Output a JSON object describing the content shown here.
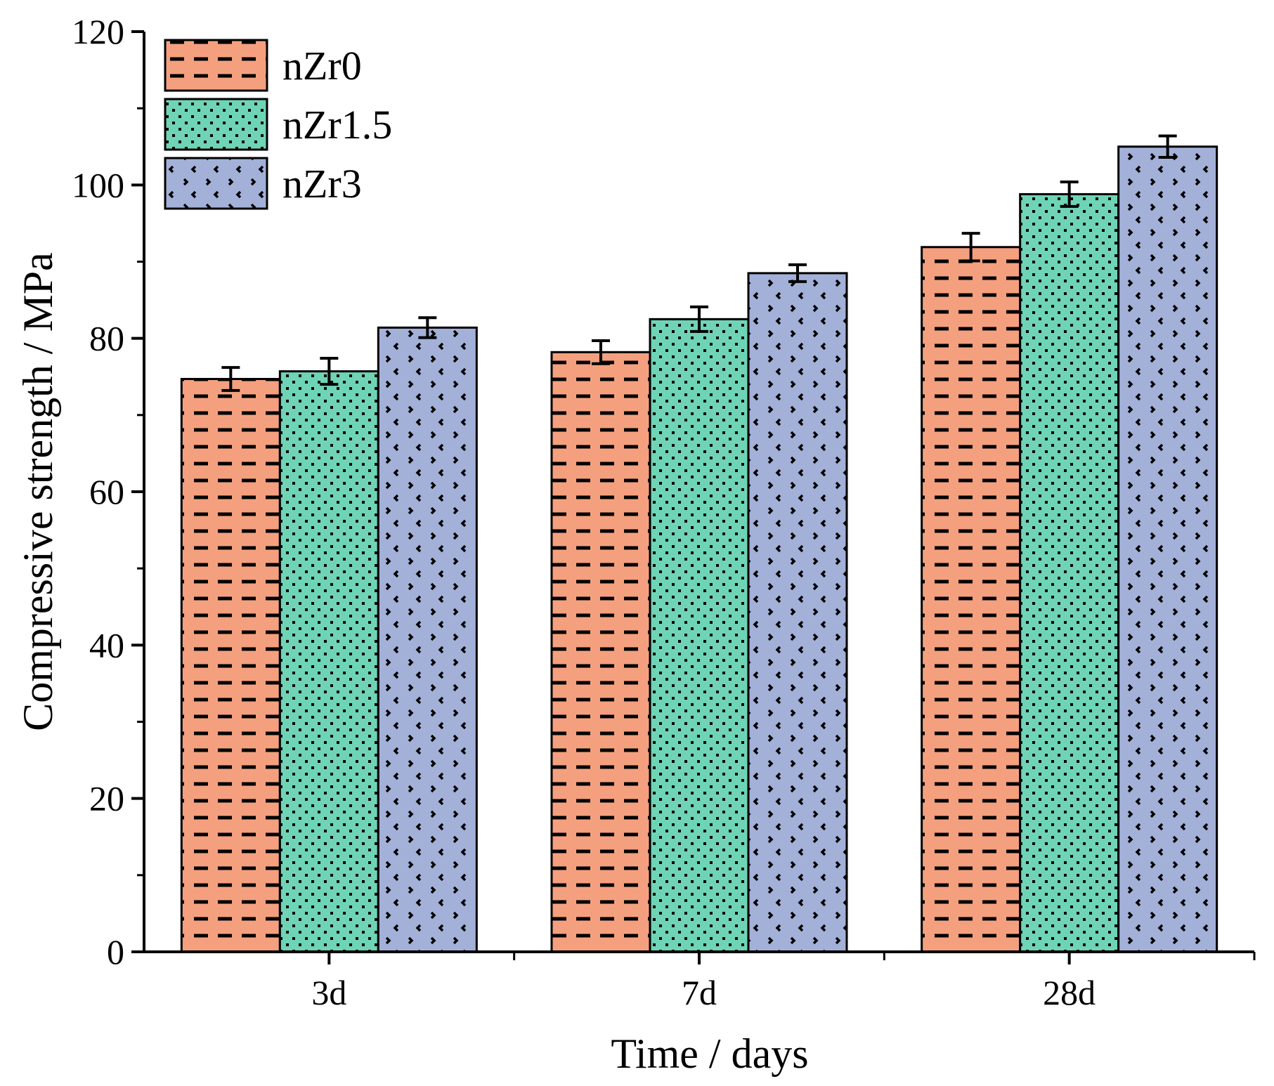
{
  "chart_data": {
    "type": "bar",
    "title": "",
    "xlabel": "Time / days",
    "ylabel": "Compressive strength / MPa",
    "categories": [
      "3d",
      "7d",
      "28d"
    ],
    "ylim": [
      0,
      120
    ],
    "y_ticks": [
      0,
      20,
      40,
      60,
      80,
      100,
      120
    ],
    "y_tick_labels": [
      "0",
      "20",
      "40",
      "60",
      "80",
      "100",
      "120"
    ],
    "y_minor_step": 10,
    "grid": false,
    "legend_position": "top-left",
    "series": [
      {
        "name": "nZr0",
        "values": [
          74.7,
          78.2,
          91.9
        ],
        "errors": [
          1.5,
          1.5,
          1.8
        ],
        "color": "#f4a07f",
        "pattern": "dashes"
      },
      {
        "name": "nZr1.5",
        "values": [
          75.7,
          82.5,
          98.8
        ],
        "errors": [
          1.7,
          1.6,
          1.6
        ],
        "color": "#6fd4b5",
        "pattern": "dots"
      },
      {
        "name": "nZr3",
        "values": [
          81.4,
          88.5,
          105.0
        ],
        "errors": [
          1.3,
          1.1,
          1.4
        ],
        "color": "#a3b1d9",
        "pattern": "chevrons"
      }
    ]
  }
}
